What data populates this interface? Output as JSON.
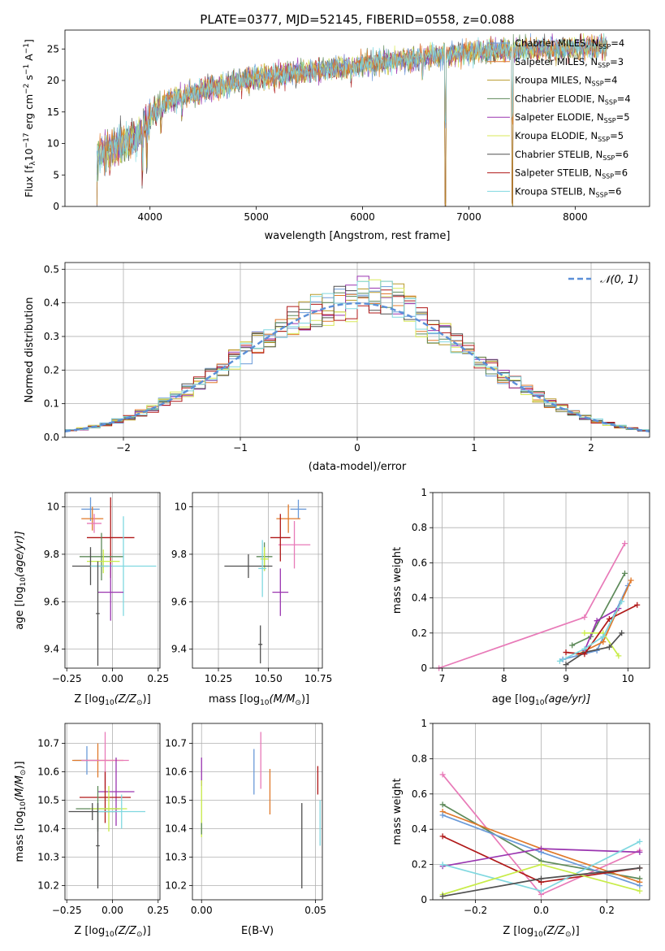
{
  "title": "PLATE=0377, MJD=52145, FIBERID=0558, z=0.088",
  "colors": {
    "chabrier_miles": "#6a9ad8",
    "salpeter_miles": "#e0792a",
    "kroupa_miles": "#b89a2a",
    "chabrier_elodie": "#5e8a5a",
    "salpeter_elodie": "#9a35b0",
    "kroupa_elodie": "#d8e85a",
    "chabrier_stelib": "#505050",
    "salpeter_stelib": "#b01818",
    "kroupa_stelib": "#80d8e0",
    "pink": "#e87ab8",
    "lime": "#c8ec48",
    "normal": "#5b8fd8"
  },
  "chart_data": [
    {
      "id": "spectrum",
      "type": "line",
      "title": "PLATE=0377, MJD=52145, FIBERID=0558, z=0.088",
      "xlabel": "wavelength [Angstrom, rest frame]",
      "ylabel_main": "Flux [f",
      "ylabel_rest": "10",
      "ylabel_units": "erg cm",
      "xlim": [
        3200,
        8700
      ],
      "ylim": [
        0,
        28
      ],
      "xticks": [
        4000,
        5000,
        6000,
        7000,
        8000
      ],
      "yticks": [
        0,
        5,
        10,
        15,
        20,
        25
      ],
      "legend": [
        {
          "model": "Chabrier MILES",
          "n": "4",
          "color": "#6a9ad8"
        },
        {
          "model": "Salpeter MILES",
          "n": "3",
          "color": "#e0792a"
        },
        {
          "model": "Kroupa MILES",
          "n": "4",
          "color": "#b89a2a"
        },
        {
          "model": "Chabrier ELODIE",
          "n": "4",
          "color": "#5e8a5a"
        },
        {
          "model": "Salpeter ELODIE",
          "n": "5",
          "color": "#9a35b0"
        },
        {
          "model": "Kroupa ELODIE",
          "n": "5",
          "color": "#d8e85a"
        },
        {
          "model": "Chabrier STELIB",
          "n": "6",
          "color": "#505050"
        },
        {
          "model": "Salpeter STELIB",
          "n": "6",
          "color": "#b01818"
        },
        {
          "model": "Kroupa STELIB",
          "n": "6",
          "color": "#80d8e0"
        }
      ],
      "legend_placement": "upper right",
      "continuum": [
        [
          3500,
          8
        ],
        [
          3700,
          9.5
        ],
        [
          3900,
          11
        ],
        [
          4000,
          14.5
        ],
        [
          4200,
          17
        ],
        [
          4500,
          18.5
        ],
        [
          5000,
          20.5
        ],
        [
          5500,
          21.5
        ],
        [
          6000,
          22.5
        ],
        [
          6500,
          23.5
        ],
        [
          7000,
          24.5
        ],
        [
          7500,
          25
        ],
        [
          8000,
          25
        ],
        [
          8300,
          25.5
        ]
      ],
      "lines": [
        [
          3500,
          -7
        ],
        [
          3930,
          -6
        ],
        [
          3970,
          -5
        ],
        [
          4102,
          -3
        ],
        [
          4300,
          -3
        ],
        [
          4861,
          -2
        ],
        [
          5175,
          -3
        ],
        [
          5270,
          -2
        ],
        [
          5890,
          -2
        ],
        [
          6563,
          -3
        ],
        [
          6780,
          -24
        ],
        [
          7410,
          -25
        ]
      ]
    },
    {
      "id": "residuals",
      "type": "histogram",
      "xlabel": "(data-model)/error",
      "ylabel": "Normed distribution",
      "xlim": [
        -2.5,
        2.5
      ],
      "ylim": [
        0,
        0.52
      ],
      "xticks": [
        -2,
        -1,
        0,
        1,
        2
      ],
      "yticks": [
        0.0,
        0.1,
        0.2,
        0.3,
        0.4,
        0.5
      ],
      "legend": "$\\mathcal{N}(0,1)$",
      "legend_text": "𝒩(0, 1)",
      "legend_placement": "upper right",
      "bin_width": 0.1,
      "grid": true
    },
    {
      "id": "age_z",
      "type": "scatter",
      "xlabel": "Z [log",
      "xlabel_sub": "10",
      "xlabel_rest": "(Z/Z",
      "ylabel": "age  [log",
      "ylabel_sub": "10",
      "ylabel_rest": "(age/yr)]",
      "xlim": [
        -0.26,
        0.26
      ],
      "ylim": [
        9.32,
        10.06
      ],
      "xticks": [
        -0.25,
        0.0,
        0.25
      ],
      "xtick_labels": [
        "−0.25",
        "0.00",
        "0.25"
      ],
      "yticks": [
        9.4,
        9.6,
        9.8,
        10.0
      ],
      "points": [
        {
          "x": -0.12,
          "y": 9.99,
          "xe": 0.05,
          "ye": 0.05,
          "c": "chabrier_miles"
        },
        {
          "x": -0.11,
          "y": 9.95,
          "xe": 0.06,
          "ye": 0.05,
          "c": "salpeter_miles"
        },
        {
          "x": -0.1,
          "y": 9.93,
          "xe": 0.04,
          "ye": 0.04,
          "c": "pink"
        },
        {
          "x": -0.01,
          "y": 9.87,
          "xe": 0.13,
          "ye": 0.17,
          "c": "salpeter_stelib"
        },
        {
          "x": -0.06,
          "y": 9.79,
          "xe": 0.12,
          "ye": 0.1,
          "c": "chabrier_elodie"
        },
        {
          "x": -0.05,
          "y": 9.77,
          "xe": 0.09,
          "ye": 0.05,
          "c": "lime"
        },
        {
          "x": -0.12,
          "y": 9.75,
          "xe": 0.1,
          "ye": 0.08,
          "c": "chabrier_stelib"
        },
        {
          "x": 0.06,
          "y": 9.75,
          "xe": 0.18,
          "ye": 0.21,
          "c": "kroupa_stelib"
        },
        {
          "x": -0.01,
          "y": 9.64,
          "xe": 0.07,
          "ye": 0.12,
          "c": "salpeter_elodie"
        },
        {
          "x": -0.08,
          "y": 9.55,
          "xe": 0.01,
          "ye": 0.22,
          "c": "chabrier_stelib"
        }
      ]
    },
    {
      "id": "age_mass",
      "type": "scatter",
      "xlabel": "mass [log",
      "xlabel_sub": "10",
      "xlabel_rest": "(M/M",
      "xlim": [
        10.12,
        10.77
      ],
      "ylim": [
        9.32,
        10.06
      ],
      "xticks": [
        10.25,
        10.5,
        10.75
      ],
      "xtick_labels": [
        "10.25",
        "10.50",
        "10.75"
      ],
      "yticks": [
        9.4,
        9.6,
        9.8,
        10.0
      ],
      "points": [
        {
          "x": 10.65,
          "y": 9.99,
          "xe": 0.04,
          "ye": 0.04,
          "c": "chabrier_miles"
        },
        {
          "x": 10.6,
          "y": 9.95,
          "xe": 0.06,
          "ye": 0.06,
          "c": "salpeter_miles"
        },
        {
          "x": 10.63,
          "y": 9.84,
          "xe": 0.08,
          "ye": 0.1,
          "c": "pink"
        },
        {
          "x": 10.56,
          "y": 9.87,
          "xe": 0.05,
          "ye": 0.1,
          "c": "salpeter_stelib"
        },
        {
          "x": 10.48,
          "y": 9.79,
          "xe": 0.04,
          "ye": 0.06,
          "c": "chabrier_elodie"
        },
        {
          "x": 10.48,
          "y": 9.78,
          "xe": 0.02,
          "ye": 0.05,
          "c": "lime"
        },
        {
          "x": 10.4,
          "y": 9.75,
          "xe": 0.12,
          "ye": 0.05,
          "c": "chabrier_stelib"
        },
        {
          "x": 10.47,
          "y": 9.74,
          "xe": 0.02,
          "ye": 0.12,
          "c": "kroupa_stelib"
        },
        {
          "x": 10.56,
          "y": 9.64,
          "xe": 0.04,
          "ye": 0.1,
          "c": "salpeter_elodie"
        },
        {
          "x": 10.46,
          "y": 9.42,
          "xe": 0.01,
          "ye": 0.08,
          "c": "chabrier_stelib"
        }
      ]
    },
    {
      "id": "mw_age",
      "type": "line",
      "xlabel": "age  [log",
      "xlabel_sub": "10",
      "xlabel_rest": "(age/yr)]",
      "ylabel": "mass weight",
      "xlim": [
        6.85,
        10.35
      ],
      "ylim": [
        0,
        1
      ],
      "xticks": [
        7,
        8,
        9,
        10
      ],
      "yticks": [
        0.0,
        0.2,
        0.4,
        0.6,
        0.8,
        1.0
      ],
      "grid": true,
      "series": [
        {
          "c": "pink",
          "pts": [
            [
              6.95,
              0.0
            ],
            [
              9.3,
              0.29
            ],
            [
              9.95,
              0.71
            ]
          ]
        },
        {
          "c": "chabrier_miles",
          "pts": [
            [
              8.95,
              0.05
            ],
            [
              9.5,
              0.1
            ],
            [
              10.0,
              0.47
            ]
          ]
        },
        {
          "c": "salpeter_miles",
          "pts": [
            [
              9.2,
              0.08
            ],
            [
              9.6,
              0.15
            ],
            [
              10.05,
              0.5
            ]
          ]
        },
        {
          "c": "chabrier_elodie",
          "pts": [
            [
              9.1,
              0.13
            ],
            [
              9.4,
              0.18
            ],
            [
              9.95,
              0.54
            ]
          ]
        },
        {
          "c": "salpeter_elodie",
          "pts": [
            [
              9.3,
              0.1
            ],
            [
              9.5,
              0.27
            ],
            [
              9.85,
              0.34
            ]
          ]
        },
        {
          "c": "lime",
          "pts": [
            [
              9.3,
              0.2
            ],
            [
              9.6,
              0.2
            ],
            [
              9.85,
              0.07
            ]
          ]
        },
        {
          "c": "chabrier_stelib",
          "pts": [
            [
              9.0,
              0.02
            ],
            [
              9.3,
              0.09
            ],
            [
              9.7,
              0.12
            ],
            [
              9.9,
              0.2
            ]
          ]
        },
        {
          "c": "salpeter_stelib",
          "pts": [
            [
              9.0,
              0.09
            ],
            [
              9.3,
              0.08
            ],
            [
              9.7,
              0.28
            ],
            [
              10.15,
              0.36
            ]
          ]
        },
        {
          "c": "kroupa_stelib",
          "pts": [
            [
              8.9,
              0.04
            ],
            [
              9.3,
              0.11
            ],
            [
              9.6,
              0.18
            ],
            [
              9.9,
              0.38
            ]
          ]
        }
      ]
    },
    {
      "id": "mass_z",
      "type": "scatter",
      "xlabel": "Z [log",
      "xlabel_sub": "10",
      "xlabel_rest": "(Z/Z",
      "ylabel": "mass [log",
      "ylabel_sub": "10",
      "ylabel_rest": "(M/M",
      "xlim": [
        -0.26,
        0.26
      ],
      "ylim": [
        10.15,
        10.77
      ],
      "xticks": [
        -0.25,
        0.0,
        0.25
      ],
      "xtick_labels": [
        "−0.25",
        "0.00",
        "0.25"
      ],
      "yticks": [
        10.2,
        10.3,
        10.4,
        10.5,
        10.6,
        10.7
      ],
      "points": [
        {
          "x": -0.14,
          "y": 10.64,
          "xe": 0.07,
          "ye": 0.05,
          "c": "chabrier_miles"
        },
        {
          "x": -0.08,
          "y": 10.64,
          "xe": 0.14,
          "ye": 0.06,
          "c": "salpeter_miles"
        },
        {
          "x": -0.04,
          "y": 10.64,
          "xe": 0.13,
          "ye": 0.1,
          "c": "pink"
        },
        {
          "x": 0.02,
          "y": 10.53,
          "xe": 0.1,
          "ye": 0.12,
          "c": "salpeter_elodie"
        },
        {
          "x": -0.04,
          "y": 10.51,
          "xe": 0.14,
          "ye": 0.09,
          "c": "salpeter_stelib"
        },
        {
          "x": -0.08,
          "y": 10.47,
          "xe": 0.12,
          "ye": 0.08,
          "c": "chabrier_elodie"
        },
        {
          "x": -0.02,
          "y": 10.47,
          "xe": 0.1,
          "ye": 0.08,
          "c": "lime"
        },
        {
          "x": -0.11,
          "y": 10.46,
          "xe": 0.13,
          "ye": 0.03,
          "c": "chabrier_stelib"
        },
        {
          "x": 0.05,
          "y": 10.46,
          "xe": 0.13,
          "ye": 0.06,
          "c": "kroupa_stelib"
        },
        {
          "x": -0.08,
          "y": 10.34,
          "xe": 0.01,
          "ye": 0.15,
          "c": "chabrier_stelib"
        }
      ]
    },
    {
      "id": "mass_ebv",
      "type": "scatter",
      "xlabel": "E(B-V)",
      "xlim": [
        -0.004,
        0.053
      ],
      "ylim": [
        10.15,
        10.77
      ],
      "xticks": [
        0.0,
        0.05
      ],
      "xtick_labels": [
        "0.00",
        "0.05"
      ],
      "yticks": [
        10.2,
        10.3,
        10.4,
        10.5,
        10.6,
        10.7
      ],
      "points": [
        {
          "x": 0.0,
          "y": 10.6,
          "xe": 0,
          "ye": 0.05,
          "c": "salpeter_elodie"
        },
        {
          "x": 0.0,
          "y": 10.47,
          "xe": 0,
          "ye": 0.1,
          "c": "lime"
        },
        {
          "x": 0.0,
          "y": 10.4,
          "xe": 0,
          "ye": 0.02,
          "c": "chabrier_elodie"
        },
        {
          "x": 0.023,
          "y": 10.6,
          "xe": 0,
          "ye": 0.08,
          "c": "chabrier_miles"
        },
        {
          "x": 0.026,
          "y": 10.64,
          "xe": 0,
          "ye": 0.1,
          "c": "pink"
        },
        {
          "x": 0.03,
          "y": 10.53,
          "xe": 0,
          "ye": 0.08,
          "c": "salpeter_miles"
        },
        {
          "x": 0.044,
          "y": 10.34,
          "xe": 0,
          "ye": 0.15,
          "c": "chabrier_stelib"
        },
        {
          "x": 0.051,
          "y": 10.57,
          "xe": 0,
          "ye": 0.05,
          "c": "salpeter_stelib"
        },
        {
          "x": 0.052,
          "y": 10.42,
          "xe": 0,
          "ye": 0.08,
          "c": "kroupa_stelib"
        }
      ]
    },
    {
      "id": "mw_z",
      "type": "line",
      "xlabel": "Z [log",
      "xlabel_sub": "10",
      "xlabel_rest": "(Z/Z",
      "ylabel": "mass weight",
      "xlim": [
        -0.33,
        0.33
      ],
      "ylim": [
        0,
        1
      ],
      "xticks": [
        -0.2,
        0.0,
        0.2
      ],
      "xtick_labels": [
        "−0.2",
        "0.0",
        "0.2"
      ],
      "yticks": [
        0.0,
        0.2,
        0.4,
        0.6,
        0.8,
        1.0
      ],
      "grid": true,
      "series": [
        {
          "c": "pink",
          "pts": [
            [
              -0.3,
              0.71
            ],
            [
              0.0,
              0.03
            ],
            [
              0.3,
              0.28
            ]
          ]
        },
        {
          "c": "chabrier_elodie",
          "pts": [
            [
              -0.3,
              0.54
            ],
            [
              0.0,
              0.22
            ],
            [
              0.3,
              0.12
            ]
          ]
        },
        {
          "c": "salpeter_miles",
          "pts": [
            [
              -0.3,
              0.5
            ],
            [
              0.0,
              0.29
            ],
            [
              0.3,
              0.1
            ]
          ]
        },
        {
          "c": "chabrier_miles",
          "pts": [
            [
              -0.3,
              0.48
            ],
            [
              0.0,
              0.27
            ],
            [
              0.3,
              0.08
            ]
          ]
        },
        {
          "c": "salpeter_stelib",
          "pts": [
            [
              -0.3,
              0.36
            ],
            [
              0.0,
              0.1
            ],
            [
              0.3,
              0.18
            ]
          ]
        },
        {
          "c": "salpeter_elodie",
          "pts": [
            [
              -0.3,
              0.19
            ],
            [
              0.0,
              0.29
            ],
            [
              0.3,
              0.27
            ]
          ]
        },
        {
          "c": "kroupa_stelib",
          "pts": [
            [
              -0.3,
              0.2
            ],
            [
              0.0,
              0.05
            ],
            [
              0.3,
              0.33
            ]
          ]
        },
        {
          "c": "lime",
          "pts": [
            [
              -0.3,
              0.03
            ],
            [
              0.0,
              0.2
            ],
            [
              0.3,
              0.05
            ]
          ]
        },
        {
          "c": "chabrier_stelib",
          "pts": [
            [
              -0.3,
              0.02
            ],
            [
              0.0,
              0.12
            ],
            [
              0.3,
              0.18
            ]
          ]
        }
      ]
    }
  ]
}
